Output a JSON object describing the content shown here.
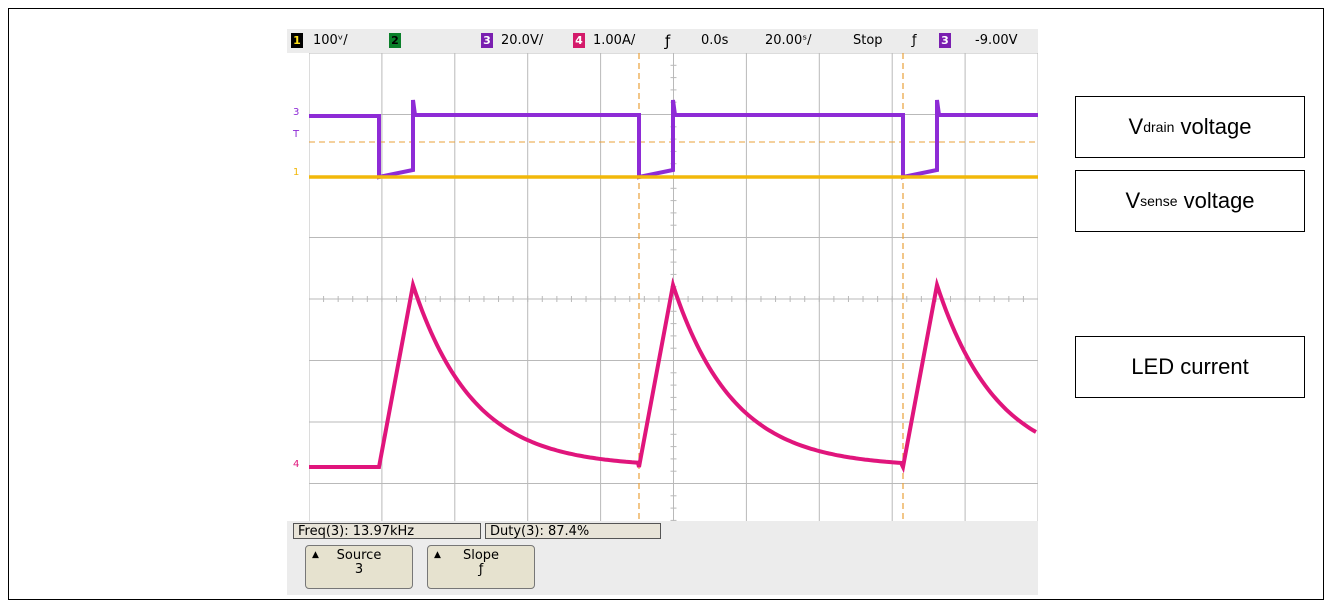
{
  "scope": {
    "status": {
      "ch1_num": "1",
      "ch1_scale": "100ᵛ/",
      "ch2_num": "2",
      "ch3_num": "3",
      "ch3_scale": "20.0V/",
      "ch4_num": "4",
      "ch4_scale": "1.00A/",
      "trigger_symbol": "ƒ",
      "time_offset": "0.0s",
      "time_scale": "20.00ˢ/",
      "run_state": "Stop",
      "slope_symbol": "ƒ",
      "trig_ch_num": "3",
      "trig_level": "-9.00V"
    },
    "channel_markers": {
      "ch3": "3",
      "trigger": "T",
      "ch1": "1",
      "ch4": "4"
    },
    "measurements": {
      "freq": "Freq(3): 13.97kHz",
      "duty": "Duty(3): 87.4%"
    },
    "softkeys": [
      {
        "label": "Source",
        "value": "3"
      },
      {
        "label": "Slope",
        "value": "ƒ"
      }
    ],
    "colors": {
      "ch1": "#f2b80a",
      "ch3": "#8e2bd6",
      "ch4": "#e0157c",
      "grid": "#b9b9b9",
      "trigger": "#e8a13a"
    }
  },
  "callouts": {
    "vdrain": {
      "main": "V",
      "sub": "drain",
      "rest": " voltage"
    },
    "vsense": {
      "main": "V",
      "sub": "sense",
      "rest": " voltage"
    },
    "led": {
      "text": "LED current"
    }
  }
}
